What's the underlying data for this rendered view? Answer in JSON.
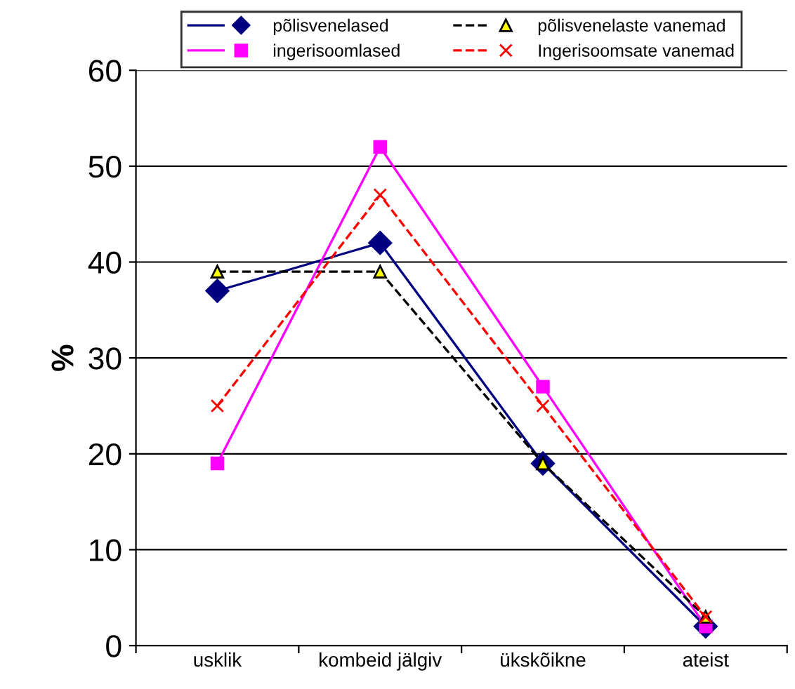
{
  "chart_data": {
    "type": "line",
    "ylabel": "%",
    "categories": [
      "usklik",
      "kombeid jälgiv",
      "ükskõikne",
      "ateist"
    ],
    "ylim": [
      0,
      60
    ],
    "yticks": [
      0,
      10,
      20,
      30,
      40,
      50,
      60
    ],
    "grid": "y",
    "legend": "top",
    "series": [
      {
        "name": "põlisvenelased",
        "color": "#000080",
        "marker": "diamond",
        "line_style": "solid",
        "values": [
          37,
          42,
          19,
          2
        ]
      },
      {
        "name": "ingerisoomlased",
        "color": "#ff00ff",
        "marker": "square",
        "line_style": "solid",
        "values": [
          19,
          52,
          27,
          2
        ]
      },
      {
        "name": "põlisvenelaste vanemad",
        "color": "#000000",
        "marker": "triangle",
        "line_style": "dashed",
        "values": [
          39,
          39,
          19,
          3
        ]
      },
      {
        "name": "Ingerisoomsate vanemad",
        "color": "#ff0000",
        "marker": "cross",
        "line_style": "dashed",
        "values": [
          25,
          47,
          25,
          3
        ]
      }
    ]
  }
}
